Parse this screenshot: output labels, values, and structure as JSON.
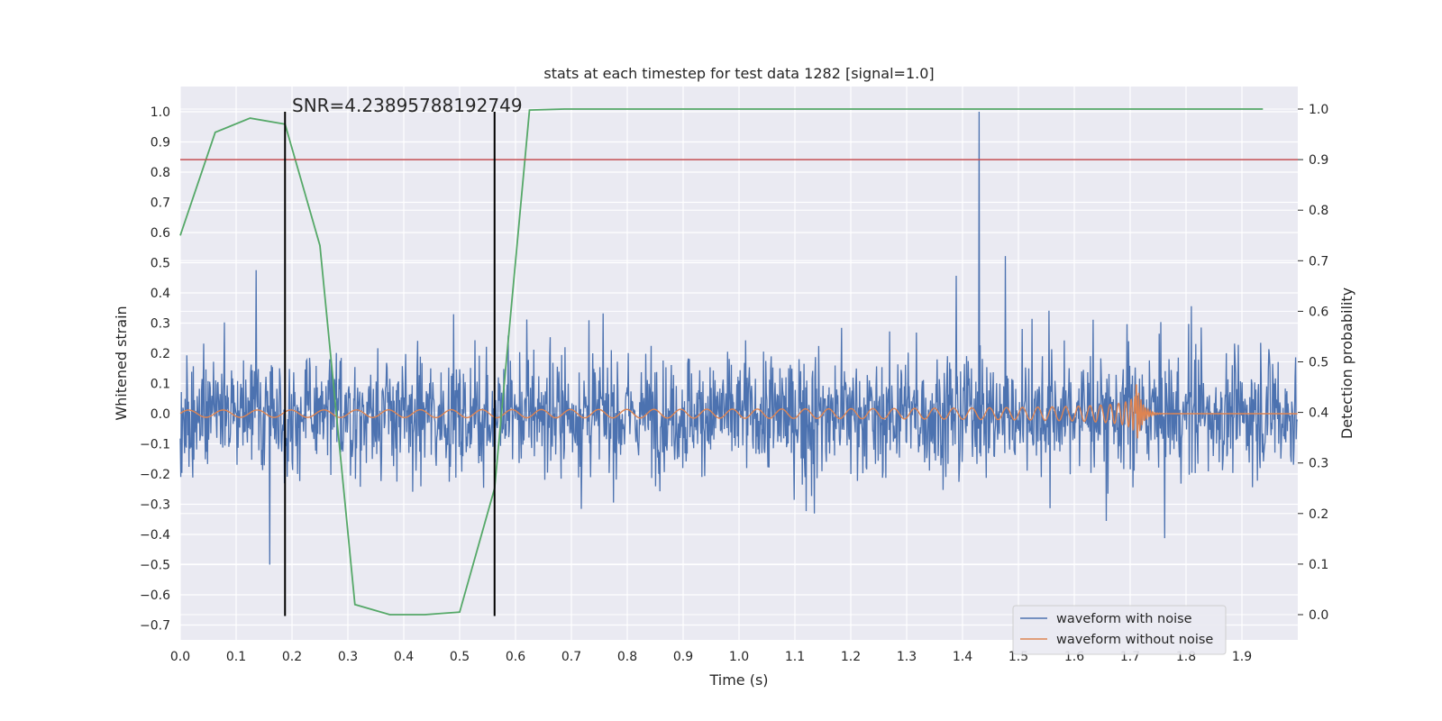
{
  "chart_data": {
    "type": "line",
    "title": "stats at each timestep for test data 1282 [signal=1.0]",
    "xlabel": "Time (s)",
    "ylabel": "Whitened strain",
    "y2label": "Detection probability",
    "xlim": [
      0.0,
      2.0
    ],
    "ylim": [
      -0.757,
      1.08
    ],
    "y2lim": [
      -0.05,
      1.045
    ],
    "xticks": [
      "0.0",
      "0.1",
      "0.2",
      "0.3",
      "0.4",
      "0.5",
      "0.6",
      "0.7",
      "0.8",
      "0.9",
      "1.0",
      "1.1",
      "1.2",
      "1.3",
      "1.4",
      "1.5",
      "1.6",
      "1.7",
      "1.8",
      "1.9"
    ],
    "yticks": [
      "1.0",
      "0.9",
      "0.8",
      "0.7",
      "0.6",
      "0.5",
      "0.4",
      "0.3",
      "0.2",
      "0.1",
      "0.0",
      "−0.1",
      "−0.2",
      "−0.3",
      "−0.4",
      "−0.5",
      "−0.6",
      "−0.7"
    ],
    "y2ticks": [
      "1.0",
      "0.9",
      "0.8",
      "0.7",
      "0.6",
      "0.5",
      "0.4",
      "0.3",
      "0.2",
      "0.1",
      "0.0"
    ],
    "grid": true,
    "legend_position": "lower-right",
    "annotation": "SNR=4.23895788192749",
    "series": [
      {
        "name": "waveform with noise",
        "color": "#4c72b0",
        "axis": "left",
        "description": "whitened noisy strain, range approx -0.68 to 1.0, peak 1.0 at t≈1.43"
      },
      {
        "name": "waveform without noise",
        "color": "#dd8452",
        "axis": "left",
        "description": "chirp signal, amplitude growing until merger at t≈1.71, peak ≈0.2"
      },
      {
        "color": "#55a868",
        "axis": "right",
        "x": [
          0.0,
          0.0625,
          0.125,
          0.1875,
          0.25,
          0.3125,
          0.375,
          0.4375,
          0.5,
          0.5625,
          0.625,
          0.6875,
          0.75,
          1.0,
          1.25,
          1.5,
          1.75,
          1.9375
        ],
        "values": [
          0.75,
          0.954,
          0.982,
          0.97,
          0.73,
          0.02,
          0.0,
          0.0,
          0.005,
          0.25,
          0.998,
          1.0,
          1.0,
          1.0,
          1.0,
          1.0,
          1.0,
          1.0
        ]
      }
    ],
    "hlines": [
      {
        "y2": 0.9,
        "color": "#c44e52"
      }
    ],
    "vlines": [
      {
        "x": 0.1875,
        "y": [
          -0.67,
          1.0
        ]
      },
      {
        "x": 0.5625,
        "y": [
          -0.67,
          1.0
        ]
      }
    ],
    "colors": {
      "background": "#eaeaf2",
      "grid": "#ffffff"
    }
  }
}
